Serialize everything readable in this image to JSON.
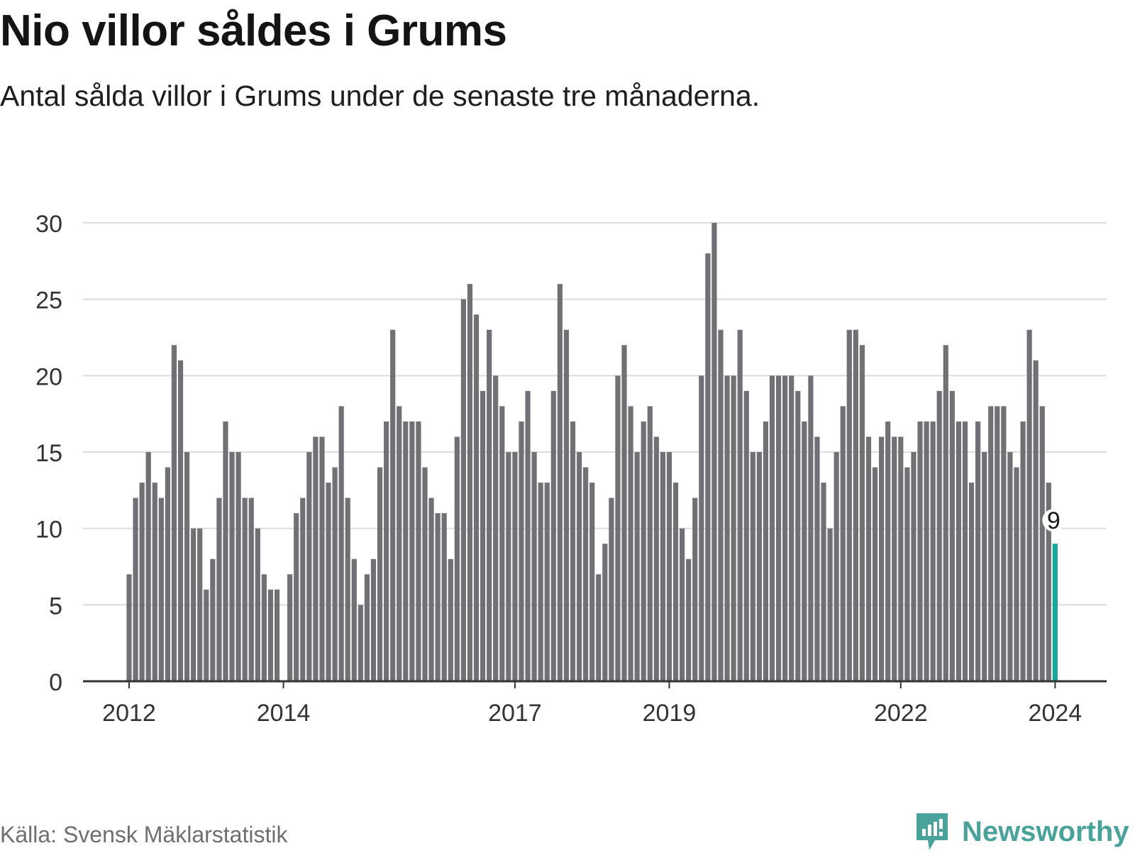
{
  "title": "Nio villor såldes i Grums",
  "subtitle": "Antal sålda villor i Grums under de senaste tre månaderna.",
  "source": "Källa: Svensk Mäklarstatistik",
  "brand": {
    "name": "Newsworthy",
    "color": "#4aa39a",
    "icon": "newsworthy-logo-icon"
  },
  "colors": {
    "bar": "#717175",
    "highlight": "#17a69a",
    "grid": "#dcdcdc",
    "axis": "#333333"
  },
  "chart_data": {
    "type": "bar",
    "title": "Nio villor såldes i Grums",
    "xlabel": "",
    "ylabel": "",
    "ylim": [
      0,
      30
    ],
    "yticks": [
      "0",
      "5",
      "10",
      "15",
      "20",
      "25",
      "30"
    ],
    "xtick_labels": [
      {
        "label": "2012",
        "index": 0
      },
      {
        "label": "2014",
        "index": 24
      },
      {
        "label": "2017",
        "index": 60
      },
      {
        "label": "2019",
        "index": 84
      },
      {
        "label": "2022",
        "index": 120
      },
      {
        "label": "2024",
        "index": 144
      }
    ],
    "highlight": {
      "index": 144,
      "label": "9"
    },
    "values": [
      7,
      12,
      13,
      15,
      13,
      12,
      14,
      22,
      21,
      15,
      10,
      10,
      6,
      8,
      12,
      17,
      15,
      15,
      12,
      12,
      10,
      7,
      6,
      6,
      0,
      7,
      11,
      12,
      15,
      16,
      16,
      13,
      14,
      18,
      12,
      8,
      5,
      7,
      8,
      14,
      17,
      23,
      18,
      17,
      17,
      17,
      14,
      12,
      11,
      11,
      8,
      16,
      25,
      26,
      24,
      19,
      23,
      20,
      18,
      15,
      15,
      17,
      19,
      15,
      13,
      13,
      19,
      26,
      23,
      17,
      15,
      14,
      13,
      7,
      9,
      12,
      20,
      22,
      18,
      15,
      17,
      18,
      16,
      15,
      15,
      13,
      10,
      8,
      12,
      20,
      28,
      30,
      23,
      20,
      20,
      23,
      19,
      15,
      15,
      17,
      20,
      20,
      20,
      20,
      19,
      17,
      20,
      16,
      13,
      10,
      15,
      18,
      23,
      23,
      22,
      16,
      14,
      16,
      17,
      16,
      16,
      14,
      15,
      17,
      17,
      17,
      19,
      22,
      19,
      17,
      17,
      13,
      17,
      15,
      18,
      18,
      18,
      15,
      14,
      17,
      23,
      21,
      18,
      13,
      9
    ]
  }
}
